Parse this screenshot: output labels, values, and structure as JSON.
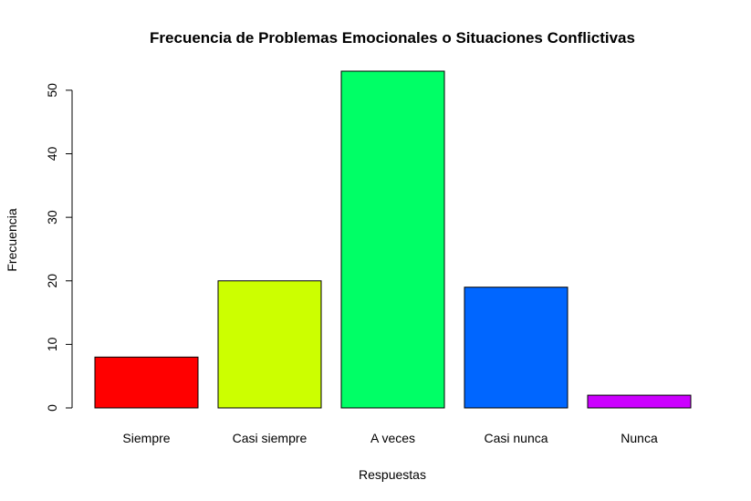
{
  "chart_data": {
    "type": "bar",
    "title": "Frecuencia de Problemas Emocionales o Situaciones Conflictivas",
    "xlabel": "Respuestas",
    "ylabel": "Frecuencia",
    "categories": [
      "Siempre",
      "Casi siempre",
      "A veces",
      "Casi nunca",
      "Nunca"
    ],
    "values": [
      8,
      20,
      53,
      19,
      2
    ],
    "colors": [
      "#ff0000",
      "#ccff00",
      "#00ff66",
      "#0066ff",
      "#cc00ff"
    ],
    "yticks": [
      "0",
      "10",
      "20",
      "30",
      "40",
      "50"
    ],
    "ylim": [
      0,
      53
    ],
    "grid": false,
    "legend": "none"
  }
}
